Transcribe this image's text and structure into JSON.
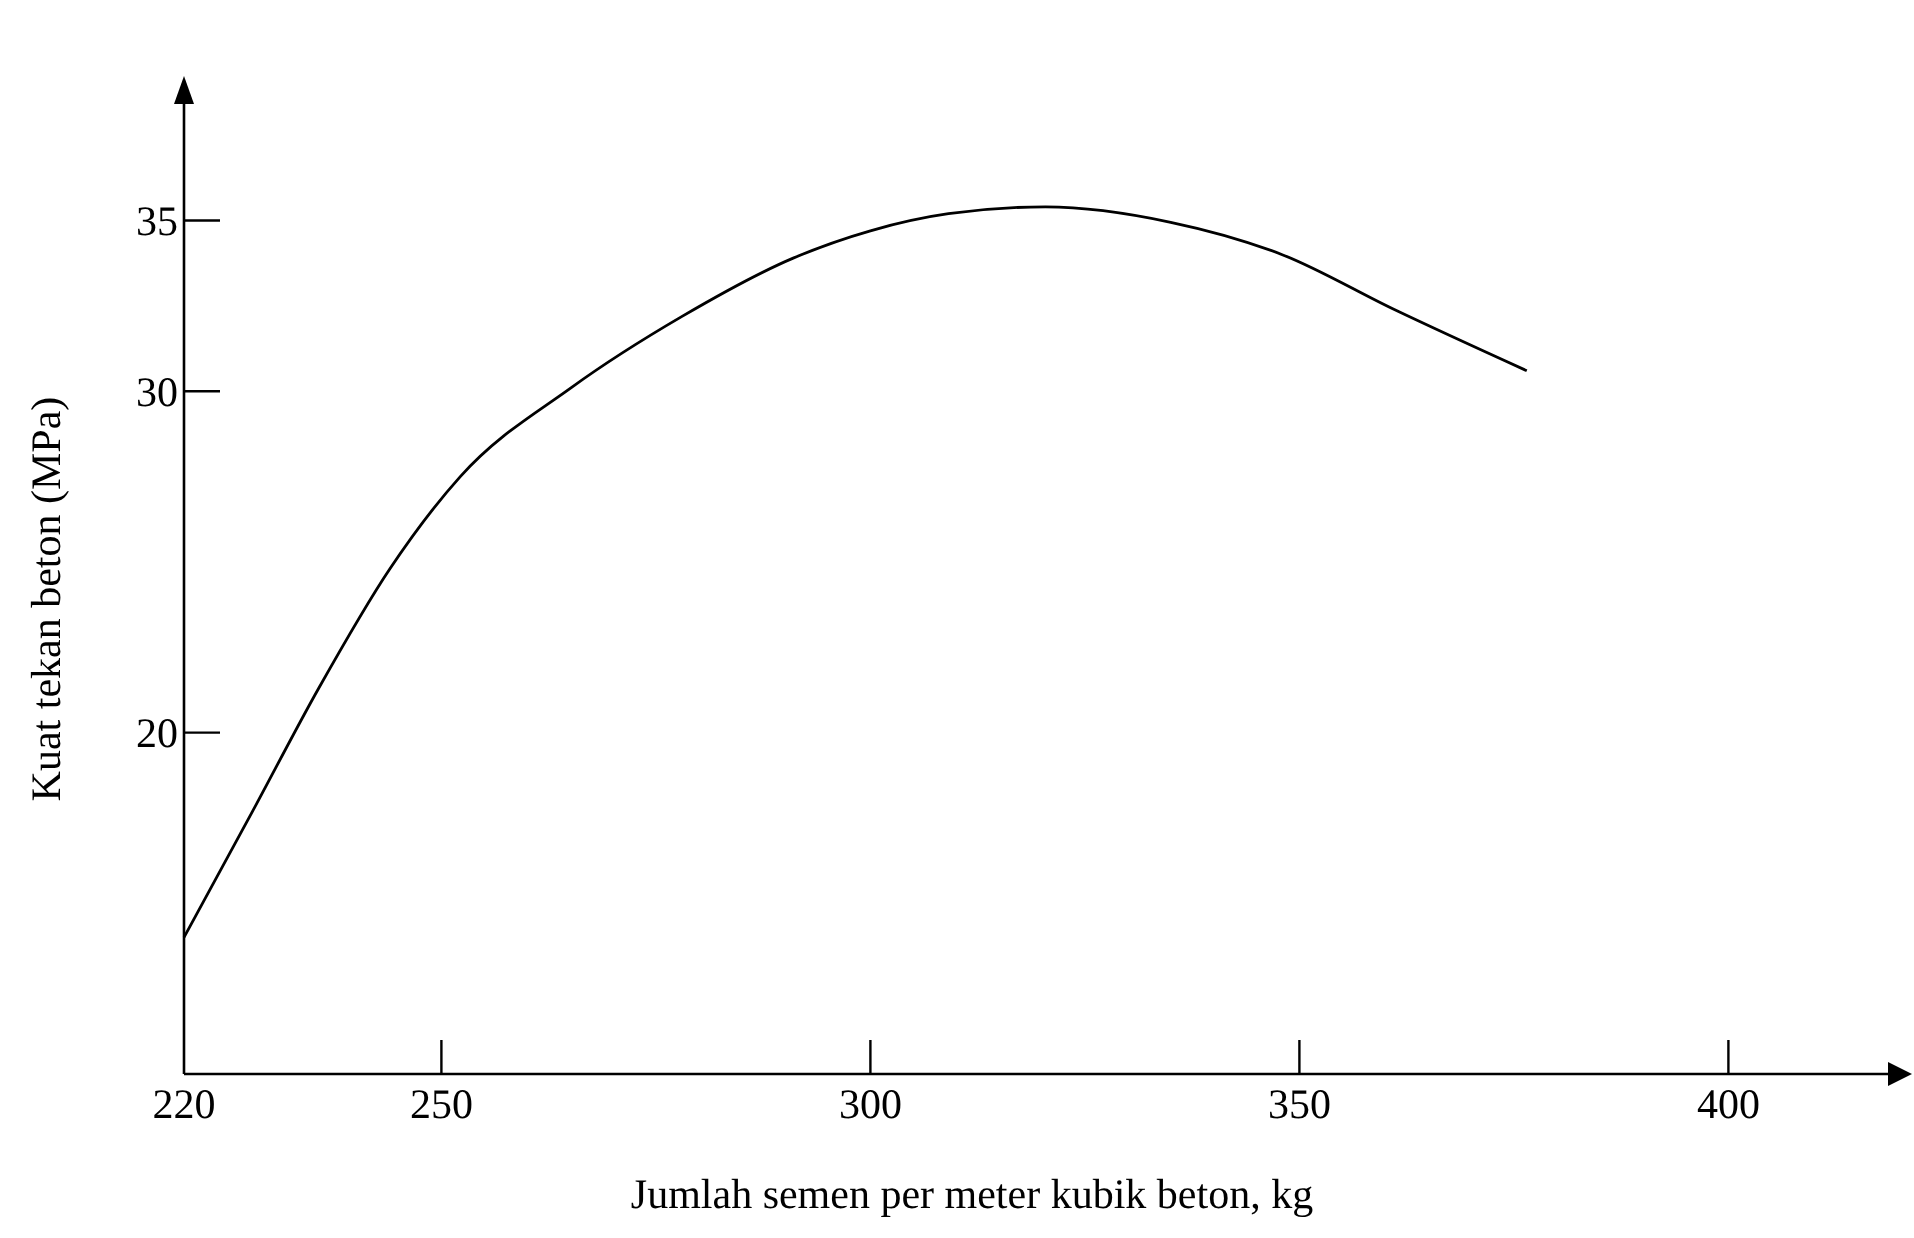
{
  "chart_data": {
    "type": "line",
    "xlabel": "Jumlah semen per meter kubik beton, kg",
    "ylabel": "Kuat tekan beton (MPa)",
    "xlim": [
      220,
      420
    ],
    "xticks": [
      220,
      250,
      300,
      350,
      400
    ],
    "ylim": [
      10,
      39
    ],
    "yticks": [
      20,
      30,
      35
    ],
    "series": [
      {
        "color": "#000000",
        "x": [
          220,
          228,
          235.7,
          244,
          252.2,
          265.1,
          278.1,
          291,
          300,
          309.1,
          320.4,
          335,
          348,
          361,
          376.5
        ],
        "values": [
          14.0,
          17.7,
          21.3,
          24.8,
          27.5,
          30.1,
          32.2,
          33.9,
          34.7,
          35.2,
          35.4,
          34.95,
          34.0,
          32.4,
          30.6
        ]
      }
    ]
  }
}
